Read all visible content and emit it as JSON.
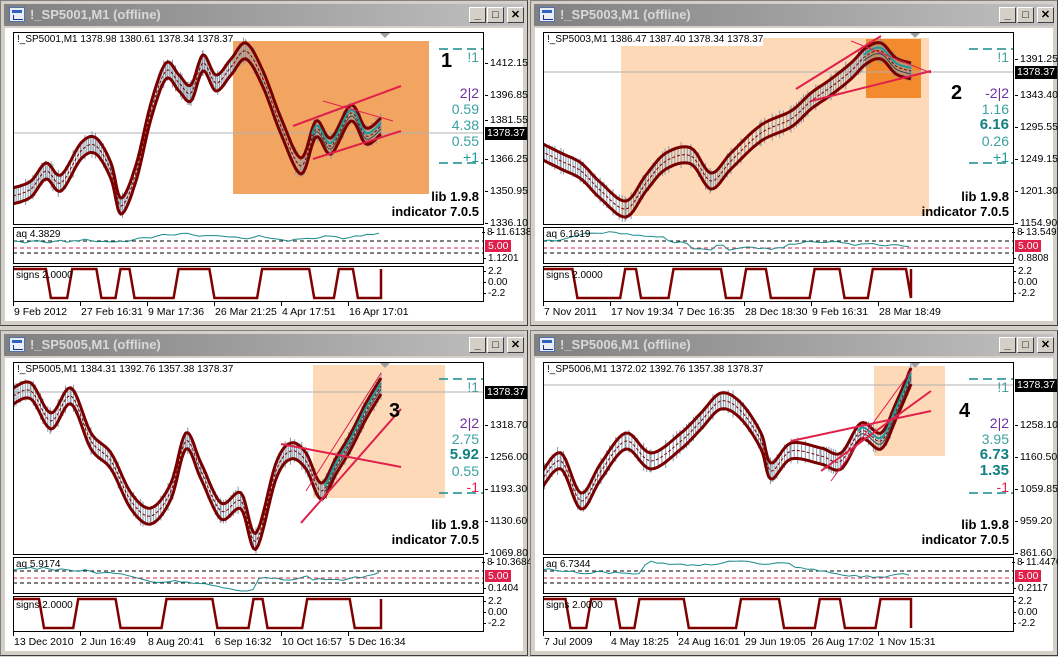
{
  "colors": {
    "band": "#7a0000",
    "ma": "#1a9a9a",
    "trendline": "#e0204a",
    "highlight_strong": "#f2a561",
    "highlight_light": "#fdd9b8",
    "highlight_dark": "#f38a2e",
    "signs": "#800000",
    "aq": "#1a8a8a"
  },
  "window_buttons": {
    "minimize": "_",
    "maximize": "□",
    "close": "✕"
  },
  "windows": [
    {
      "title": "!_SP5001,M1 (offline)",
      "ohlc": "!_SP5001,M1  1378.98 1380.61 1378.34 1378.37",
      "price_labels": [
        "1412.15",
        "1396.85",
        "1381.55",
        "1366.25",
        "1350.95",
        "1336.10"
      ],
      "current_price": "1378.37",
      "chart_number": "1",
      "panel": [
        {
          "text": "!1",
          "color": "#4aa0a0",
          "bold": false
        },
        {
          "text": "2|2",
          "color": "#7030a0",
          "bold": false
        },
        {
          "text": "0.59",
          "color": "#3aa0a0",
          "bold": false
        },
        {
          "text": "4.38",
          "color": "#3aa0a0",
          "bold": false
        },
        {
          "text": "0.55",
          "color": "#3aa0a0",
          "bold": false
        },
        {
          "text": "+1",
          "color": "#1a9a9a",
          "bold": false
        }
      ],
      "lib": "lib 1.9.8",
      "indicator": "indicator 7.0.5",
      "aq_label": "aq 4.3829",
      "aq_axis": [
        "11.6138",
        "8",
        "1.1201"
      ],
      "aq_level": "5.00",
      "signs_label": "signs 2.0000",
      "signs_axis": [
        "2.2",
        "0.00",
        "-2.2"
      ],
      "time_labels": [
        "9 Feb 2012",
        "27 Feb 16:31",
        "9 Mar 17:36",
        "26 Mar 21:25",
        "4 Apr 17:51",
        "16 Apr 17:01"
      ]
    },
    {
      "title": "!_SP5003,M1 (offline)",
      "ohlc": "!_SP5003,M1  1386.47 1387.40 1378.34 1378.37",
      "price_labels": [
        "1391.25",
        "1343.40",
        "1295.55",
        "1249.15",
        "1201.30",
        "1154.90"
      ],
      "current_price": "1378.37",
      "chart_number": "2",
      "panel": [
        {
          "text": "!1",
          "color": "#4aa0a0",
          "bold": false
        },
        {
          "text": "-2|2",
          "color": "#7030a0",
          "bold": false
        },
        {
          "text": "1.16",
          "color": "#3aa0a0",
          "bold": false
        },
        {
          "text": "6.16",
          "color": "#108080",
          "bold": true
        },
        {
          "text": "0.26",
          "color": "#3aa0a0",
          "bold": false
        },
        {
          "text": "+1",
          "color": "#1a9a9a",
          "bold": false
        }
      ],
      "lib": "lib 1.9.8",
      "indicator": "indicator 7.0.5",
      "aq_label": "aq 6.1619",
      "aq_axis": [
        "13.5497",
        "8",
        "0.8808"
      ],
      "aq_level": "5.00",
      "signs_label": "signs 2.0000",
      "signs_axis": [
        "2.2",
        "0.00",
        "-2.2"
      ],
      "time_labels": [
        "7 Nov 2011",
        "17 Nov 19:34",
        "7 Dec 16:35",
        "28 Dec 18:30",
        "9 Feb 16:31",
        "28 Mar 18:49"
      ]
    },
    {
      "title": "!_SP5005,M1 (offline)",
      "ohlc": "!_SP5005,M1  1384.31 1392.76 1357.38 1378.37",
      "price_labels": [
        "1318.70",
        "1256.00",
        "1193.30",
        "1130.60",
        "1069.80"
      ],
      "current_price": "1378.37",
      "chart_number": "3",
      "panel": [
        {
          "text": "!1",
          "color": "#4aa0a0",
          "bold": false
        },
        {
          "text": "2|2",
          "color": "#7030a0",
          "bold": false
        },
        {
          "text": "2.75",
          "color": "#3aa0a0",
          "bold": false
        },
        {
          "text": "5.92",
          "color": "#108080",
          "bold": true
        },
        {
          "text": "0.55",
          "color": "#3aa0a0",
          "bold": false
        },
        {
          "text": "-1",
          "color": "#e0204a",
          "bold": false
        }
      ],
      "lib": "lib 1.9.8",
      "indicator": "indicator 7.0.5",
      "aq_label": "aq 5.9174",
      "aq_axis": [
        "10.3684",
        "8",
        "0.1404"
      ],
      "aq_level": "5.00",
      "signs_label": "signs 2.0000",
      "signs_axis": [
        "2.2",
        "0.00",
        "-2.2"
      ],
      "time_labels": [
        "13 Dec 2010",
        "2 Jun 16:49",
        "8 Aug 20:41",
        "6 Sep 16:32",
        "10 Oct 16:57",
        "5 Dec 16:34"
      ]
    },
    {
      "title": "!_SP5006,M1 (offline)",
      "ohlc": "!_SP5006,M1  1372.02 1392.76 1357.38 1378.37",
      "price_labels": [
        "1258.10",
        "1160.50",
        "1059.85",
        "959.20",
        "861.60"
      ],
      "current_price": "1378.37",
      "chart_number": "4",
      "panel": [
        {
          "text": "!1",
          "color": "#4aa0a0",
          "bold": false
        },
        {
          "text": "2|2",
          "color": "#7030a0",
          "bold": false
        },
        {
          "text": "3.95",
          "color": "#3aa0a0",
          "bold": false
        },
        {
          "text": "6.73",
          "color": "#108080",
          "bold": true
        },
        {
          "text": "1.35",
          "color": "#108080",
          "bold": true
        },
        {
          "text": "-1",
          "color": "#e0204a",
          "bold": false
        }
      ],
      "lib": "lib 1.9.8",
      "indicator": "indicator 7.0.5",
      "aq_label": "aq 6.7344",
      "aq_axis": [
        "11.4476",
        "8",
        "0.2117"
      ],
      "aq_level": "5.00",
      "signs_label": "signs 2.0000",
      "signs_axis": [
        "2.2",
        "0.00",
        "-2.2"
      ],
      "time_labels": [
        "7 Jul 2009",
        "4 May 18:25",
        "24 Aug 16:01",
        "29 Jun 19:05",
        "26 Aug 17:02",
        "1 Nov 15:31"
      ]
    }
  ]
}
